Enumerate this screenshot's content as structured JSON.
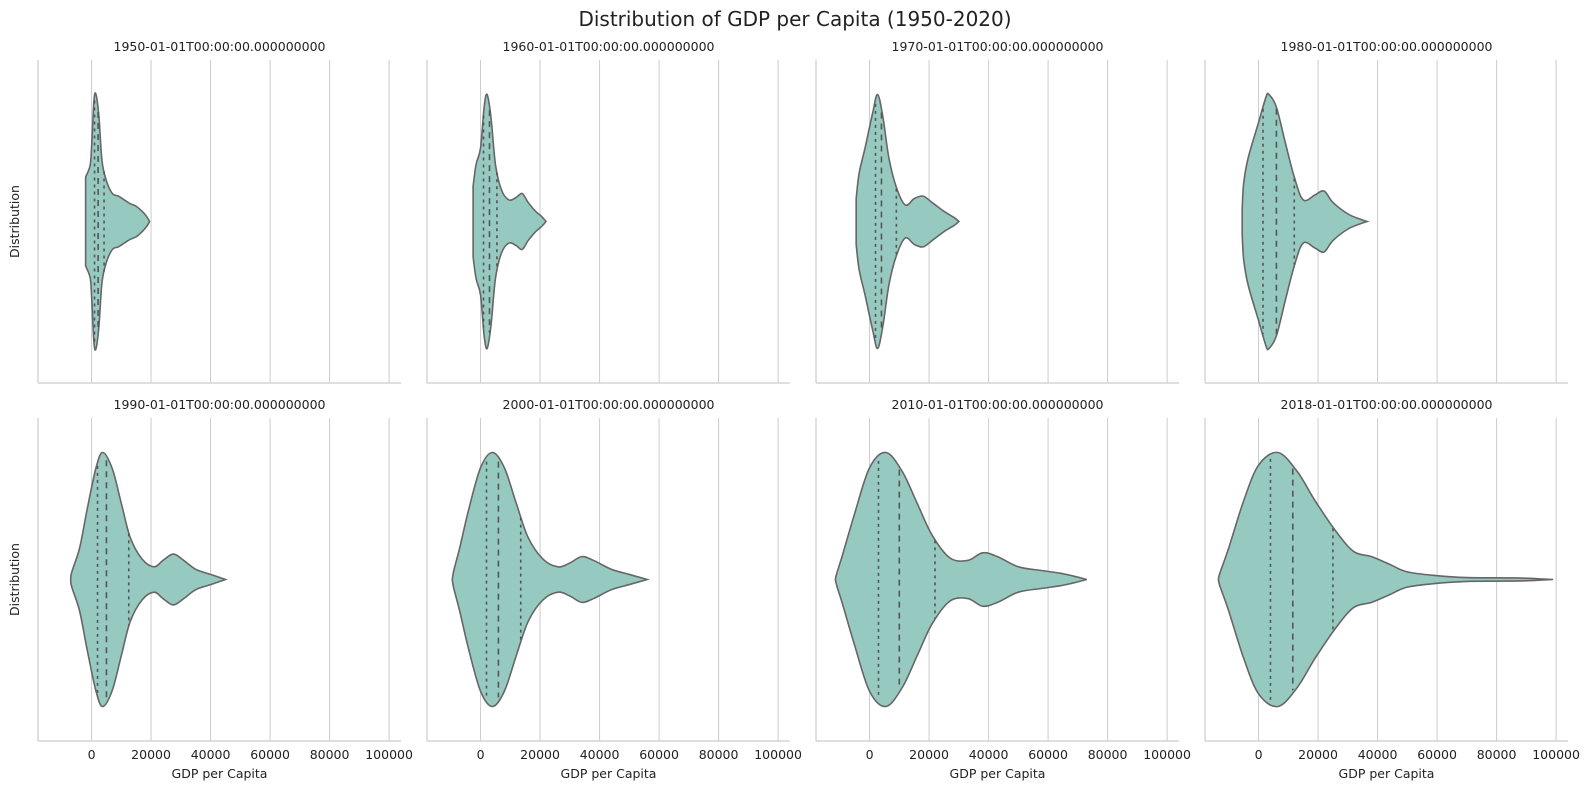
{
  "figure": {
    "title": "Distribution of GDP per Capita (1950-2020)",
    "violin_color": "#96cac1",
    "edge_color": "#666666"
  },
  "chart_data": [
    {
      "type": "violin",
      "title": "1950-01-01T00:00:00.000000000",
      "xlabel": "",
      "ylabel": "Distribution",
      "xlim": [
        -18000,
        104000
      ],
      "xticks": [
        0,
        20000,
        40000,
        60000,
        80000,
        100000
      ],
      "xtick_labels": [],
      "density": [
        [
          -2000,
          0.35
        ],
        [
          -500,
          0.44
        ],
        [
          0,
          0.58
        ],
        [
          800,
          0.95
        ],
        [
          1500,
          1.0
        ],
        [
          2500,
          0.82
        ],
        [
          3500,
          0.48
        ],
        [
          5000,
          0.32
        ],
        [
          7000,
          0.22
        ],
        [
          9000,
          0.2
        ],
        [
          11000,
          0.17
        ],
        [
          13000,
          0.14
        ],
        [
          15000,
          0.12
        ],
        [
          17000,
          0.08
        ],
        [
          18500,
          0.04
        ],
        [
          19500,
          0.0
        ]
      ],
      "quartiles": [
        1000,
        2200,
        4200
      ]
    },
    {
      "type": "violin",
      "title": "1960-01-01T00:00:00.000000000",
      "xlabel": "",
      "ylabel": "",
      "xlim": [
        -18000,
        104000
      ],
      "xticks": [
        0,
        20000,
        40000,
        60000,
        80000,
        100000
      ],
      "xtick_labels": [],
      "density": [
        [
          -2500,
          0.28
        ],
        [
          -1500,
          0.45
        ],
        [
          0,
          0.58
        ],
        [
          1200,
          0.9
        ],
        [
          2200,
          1.0
        ],
        [
          3500,
          0.82
        ],
        [
          5000,
          0.45
        ],
        [
          7000,
          0.25
        ],
        [
          9500,
          0.17
        ],
        [
          12000,
          0.19
        ],
        [
          14000,
          0.22
        ],
        [
          16000,
          0.15
        ],
        [
          18500,
          0.08
        ],
        [
          20500,
          0.04
        ],
        [
          22000,
          0.0
        ]
      ],
      "quartiles": [
        1000,
        3000,
        5500
      ]
    },
    {
      "type": "violin",
      "title": "1970-01-01T00:00:00.000000000",
      "xlabel": "",
      "ylabel": "",
      "xlim": [
        -18000,
        104000
      ],
      "xticks": [
        0,
        20000,
        40000,
        60000,
        80000,
        100000
      ],
      "xtick_labels": [],
      "density": [
        [
          -4500,
          0.18
        ],
        [
          -3500,
          0.38
        ],
        [
          -1500,
          0.58
        ],
        [
          1000,
          0.85
        ],
        [
          2700,
          1.0
        ],
        [
          4500,
          0.82
        ],
        [
          6500,
          0.5
        ],
        [
          9000,
          0.27
        ],
        [
          12000,
          0.13
        ],
        [
          15000,
          0.18
        ],
        [
          18000,
          0.2
        ],
        [
          21000,
          0.15
        ],
        [
          25000,
          0.08
        ],
        [
          28500,
          0.03
        ],
        [
          30000,
          0.0
        ]
      ],
      "quartiles": [
        2000,
        4000,
        9000
      ]
    },
    {
      "type": "violin",
      "title": "1980-01-01T00:00:00.000000000",
      "xlabel": "",
      "ylabel": "",
      "xlim": [
        -18000,
        104000
      ],
      "xticks": [
        0,
        20000,
        40000,
        60000,
        80000,
        100000
      ],
      "xtick_labels": [],
      "density": [
        [
          -5500,
          0.1
        ],
        [
          -5000,
          0.3
        ],
        [
          -3500,
          0.5
        ],
        [
          0,
          0.78
        ],
        [
          2500,
          0.98
        ],
        [
          3500,
          1.0
        ],
        [
          6000,
          0.9
        ],
        [
          9000,
          0.62
        ],
        [
          12000,
          0.35
        ],
        [
          15000,
          0.17
        ],
        [
          19000,
          0.21
        ],
        [
          22000,
          0.24
        ],
        [
          25000,
          0.15
        ],
        [
          30000,
          0.06
        ],
        [
          34000,
          0.02
        ],
        [
          36500,
          0.0
        ]
      ],
      "quartiles": [
        1500,
        6000,
        12000
      ]
    },
    {
      "type": "violin",
      "title": "1990-01-01T00:00:00.000000000",
      "xlabel": "GDP per Capita",
      "ylabel": "Distribution",
      "xlim": [
        -18000,
        104000
      ],
      "xticks": [
        0,
        20000,
        40000,
        60000,
        80000,
        100000
      ],
      "xtick_labels": [
        "0",
        "20000",
        "40000",
        "60000",
        "80000",
        "100000"
      ],
      "density": [
        [
          -7000,
          0.02
        ],
        [
          -6500,
          0.07
        ],
        [
          -4000,
          0.25
        ],
        [
          -1500,
          0.55
        ],
        [
          1500,
          0.88
        ],
        [
          3800,
          1.0
        ],
        [
          7000,
          0.87
        ],
        [
          10000,
          0.6
        ],
        [
          13000,
          0.33
        ],
        [
          17000,
          0.16
        ],
        [
          21000,
          0.1
        ],
        [
          24000,
          0.15
        ],
        [
          27500,
          0.2
        ],
        [
          31000,
          0.15
        ],
        [
          35000,
          0.08
        ],
        [
          40000,
          0.04
        ],
        [
          45000,
          0.0
        ]
      ],
      "quartiles": [
        2000,
        5000,
        12500
      ]
    },
    {
      "type": "violin",
      "title": "2000-01-01T00:00:00.000000000",
      "xlabel": "GDP per Capita",
      "ylabel": "",
      "xlim": [
        -18000,
        104000
      ],
      "xticks": [
        0,
        20000,
        40000,
        60000,
        80000,
        100000
      ],
      "xtick_labels": [
        "0",
        "20000",
        "40000",
        "60000",
        "80000",
        "100000"
      ],
      "density": [
        [
          -9500,
          0.0
        ],
        [
          -9000,
          0.07
        ],
        [
          -7000,
          0.25
        ],
        [
          -4000,
          0.55
        ],
        [
          0,
          0.88
        ],
        [
          4000,
          1.0
        ],
        [
          8000,
          0.88
        ],
        [
          12000,
          0.6
        ],
        [
          16000,
          0.33
        ],
        [
          21000,
          0.16
        ],
        [
          26000,
          0.1
        ],
        [
          30000,
          0.13
        ],
        [
          34000,
          0.18
        ],
        [
          38000,
          0.15
        ],
        [
          44000,
          0.08
        ],
        [
          50000,
          0.04
        ],
        [
          56000,
          0.0
        ]
      ],
      "quartiles": [
        2000,
        6000,
        13500
      ]
    },
    {
      "type": "violin",
      "title": "2010-01-01T00:00:00.000000000",
      "xlabel": "GDP per Capita",
      "ylabel": "",
      "xlim": [
        -18000,
        104000
      ],
      "xticks": [
        0,
        20000,
        40000,
        60000,
        80000,
        100000
      ],
      "xtick_labels": [
        "0",
        "20000",
        "40000",
        "60000",
        "80000",
        "100000"
      ],
      "density": [
        [
          -11500,
          0.0
        ],
        [
          -11000,
          0.05
        ],
        [
          -9000,
          0.2
        ],
        [
          -5000,
          0.52
        ],
        [
          0,
          0.88
        ],
        [
          5500,
          1.0
        ],
        [
          11000,
          0.85
        ],
        [
          16000,
          0.6
        ],
        [
          21000,
          0.35
        ],
        [
          27000,
          0.17
        ],
        [
          33000,
          0.15
        ],
        [
          38000,
          0.21
        ],
        [
          43000,
          0.18
        ],
        [
          50000,
          0.1
        ],
        [
          58000,
          0.07
        ],
        [
          64000,
          0.05
        ],
        [
          68000,
          0.03
        ],
        [
          73000,
          0.0
        ]
      ],
      "quartiles": [
        3000,
        10000,
        22000
      ]
    },
    {
      "type": "violin",
      "title": "2018-01-01T00:00:00.000000000",
      "xlabel": "GDP per Capita",
      "ylabel": "",
      "xlim": [
        -18000,
        104000
      ],
      "xticks": [
        0,
        20000,
        40000,
        60000,
        80000,
        100000
      ],
      "xtick_labels": [
        "0",
        "20000",
        "40000",
        "60000",
        "80000",
        "100000"
      ],
      "density": [
        [
          -13500,
          0.0
        ],
        [
          -13000,
          0.05
        ],
        [
          -10000,
          0.25
        ],
        [
          -5000,
          0.62
        ],
        [
          0,
          0.9
        ],
        [
          6500,
          1.0
        ],
        [
          13000,
          0.85
        ],
        [
          19000,
          0.62
        ],
        [
          26000,
          0.38
        ],
        [
          32000,
          0.22
        ],
        [
          38000,
          0.18
        ],
        [
          44000,
          0.12
        ],
        [
          50000,
          0.06
        ],
        [
          60000,
          0.03
        ],
        [
          70000,
          0.015
        ],
        [
          80000,
          0.013
        ],
        [
          86000,
          0.012
        ],
        [
          92000,
          0.008
        ],
        [
          99000,
          0.0
        ]
      ],
      "quartiles": [
        4000,
        11500,
        25000
      ]
    }
  ]
}
